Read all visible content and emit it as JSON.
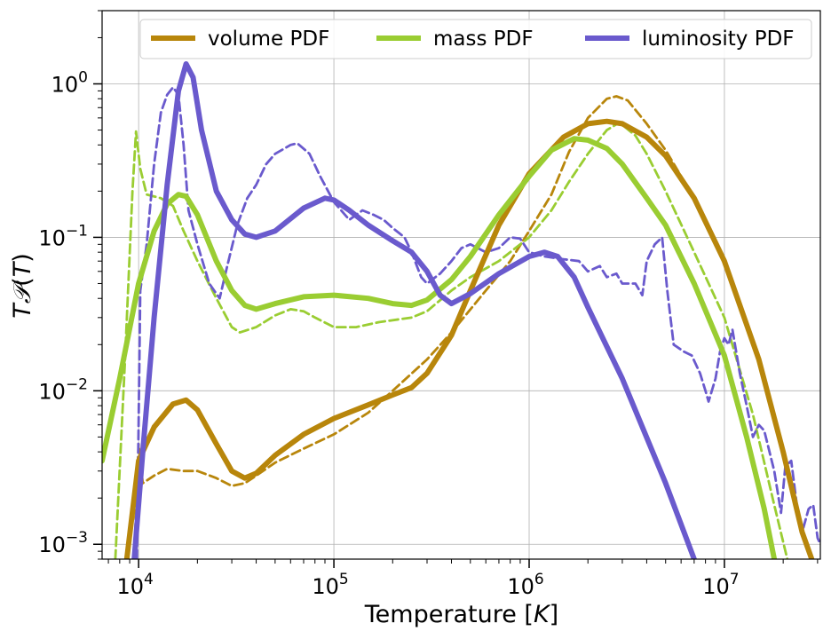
{
  "chart_data": {
    "type": "line",
    "title": "",
    "xlabel": "Temperature [K]",
    "ylabel": "T𝒫(T)",
    "x_scale": "log",
    "y_scale": "log",
    "xlim": [
      6500,
      31000000
    ],
    "ylim": [
      0.0008,
      3.0
    ],
    "x_ticks": [
      {
        "value": 10000,
        "base": "10",
        "exp": "4"
      },
      {
        "value": 100000,
        "base": "10",
        "exp": "5"
      },
      {
        "value": 1000000,
        "base": "10",
        "exp": "6"
      },
      {
        "value": 10000000,
        "base": "10",
        "exp": "7"
      }
    ],
    "y_ticks": [
      {
        "value": 0.001,
        "base": "10",
        "exp": "−3"
      },
      {
        "value": 0.01,
        "base": "10",
        "exp": "−2"
      },
      {
        "value": 0.1,
        "base": "10",
        "exp": "−1"
      },
      {
        "value": 1,
        "base": "10",
        "exp": "0"
      }
    ],
    "grid": true,
    "legend": {
      "placement": "top",
      "columns": 3
    },
    "series": [
      {
        "name": "volume PDF",
        "color": "#b8860b",
        "style": "solid",
        "legend": true,
        "points": [
          [
            8700,
            0.0008
          ],
          [
            10000,
            0.0035
          ],
          [
            12000,
            0.0058
          ],
          [
            15000,
            0.0082
          ],
          [
            17500,
            0.0087
          ],
          [
            20000,
            0.0075
          ],
          [
            25000,
            0.0045
          ],
          [
            30000,
            0.003
          ],
          [
            35000,
            0.0027
          ],
          [
            40000,
            0.0029
          ],
          [
            50000,
            0.0038
          ],
          [
            70000,
            0.0052
          ],
          [
            100000,
            0.0066
          ],
          [
            150000,
            0.0081
          ],
          [
            200000,
            0.0094
          ],
          [
            250000,
            0.0105
          ],
          [
            300000,
            0.013
          ],
          [
            400000,
            0.023
          ],
          [
            500000,
            0.045
          ],
          [
            700000,
            0.12
          ],
          [
            1000000,
            0.26
          ],
          [
            1500000,
            0.45
          ],
          [
            2000000,
            0.55
          ],
          [
            2500000,
            0.57
          ],
          [
            3000000,
            0.55
          ],
          [
            4000000,
            0.45
          ],
          [
            5000000,
            0.34
          ],
          [
            7000000,
            0.18
          ],
          [
            10000000,
            0.07
          ],
          [
            15000000,
            0.016
          ],
          [
            20000000,
            0.004
          ],
          [
            25000000,
            0.0012
          ],
          [
            28000000,
            0.0008
          ]
        ]
      },
      {
        "name": "volume PDF (dashed)",
        "color": "#b8860b",
        "style": "dashed",
        "legend": false,
        "points": [
          [
            9500,
            0.0008
          ],
          [
            10000,
            0.0045
          ],
          [
            10500,
            0.0025
          ],
          [
            12000,
            0.0028
          ],
          [
            14000,
            0.0031
          ],
          [
            17000,
            0.003
          ],
          [
            20000,
            0.003
          ],
          [
            25000,
            0.0027
          ],
          [
            30000,
            0.0024
          ],
          [
            35000,
            0.0025
          ],
          [
            40000,
            0.0028
          ],
          [
            50000,
            0.0034
          ],
          [
            70000,
            0.0042
          ],
          [
            100000,
            0.0052
          ],
          [
            150000,
            0.0072
          ],
          [
            200000,
            0.01
          ],
          [
            300000,
            0.016
          ],
          [
            400000,
            0.024
          ],
          [
            600000,
            0.045
          ],
          [
            800000,
            0.07
          ],
          [
            1000000,
            0.11
          ],
          [
            1300000,
            0.19
          ],
          [
            1600000,
            0.36
          ],
          [
            2000000,
            0.6
          ],
          [
            2500000,
            0.8
          ],
          [
            2800000,
            0.83
          ],
          [
            3200000,
            0.78
          ],
          [
            4000000,
            0.55
          ],
          [
            5000000,
            0.37
          ],
          [
            7000000,
            0.18
          ],
          [
            10000000,
            0.07
          ],
          [
            15000000,
            0.017
          ],
          [
            20000000,
            0.004
          ],
          [
            25000000,
            0.0012
          ],
          [
            28000000,
            0.0008
          ]
        ]
      },
      {
        "name": "mass PDF",
        "color": "#9acd32",
        "style": "solid",
        "legend": true,
        "points": [
          [
            6500,
            0.0035
          ],
          [
            8000,
            0.012
          ],
          [
            10000,
            0.05
          ],
          [
            12000,
            0.11
          ],
          [
            14000,
            0.165
          ],
          [
            16000,
            0.19
          ],
          [
            17500,
            0.185
          ],
          [
            20000,
            0.14
          ],
          [
            25000,
            0.07
          ],
          [
            30000,
            0.045
          ],
          [
            35000,
            0.036
          ],
          [
            40000,
            0.034
          ],
          [
            50000,
            0.037
          ],
          [
            70000,
            0.041
          ],
          [
            100000,
            0.042
          ],
          [
            150000,
            0.04
          ],
          [
            200000,
            0.037
          ],
          [
            250000,
            0.036
          ],
          [
            300000,
            0.039
          ],
          [
            400000,
            0.053
          ],
          [
            500000,
            0.075
          ],
          [
            700000,
            0.14
          ],
          [
            1000000,
            0.25
          ],
          [
            1300000,
            0.37
          ],
          [
            1700000,
            0.44
          ],
          [
            2000000,
            0.43
          ],
          [
            2500000,
            0.38
          ],
          [
            3000000,
            0.3
          ],
          [
            4000000,
            0.18
          ],
          [
            5000000,
            0.12
          ],
          [
            7000000,
            0.05
          ],
          [
            10000000,
            0.017
          ],
          [
            13000000,
            0.005
          ],
          [
            16000000,
            0.0017
          ],
          [
            18000000,
            0.0008
          ]
        ]
      },
      {
        "name": "mass PDF (dashed)",
        "color": "#9acd32",
        "style": "dashed",
        "legend": false,
        "points": [
          [
            7600,
            0.0008
          ],
          [
            8500,
            0.015
          ],
          [
            9300,
            0.2
          ],
          [
            9700,
            0.49
          ],
          [
            10200,
            0.28
          ],
          [
            11000,
            0.19
          ],
          [
            13000,
            0.18
          ],
          [
            15000,
            0.16
          ],
          [
            17000,
            0.11
          ],
          [
            20000,
            0.07
          ],
          [
            25000,
            0.04
          ],
          [
            30000,
            0.026
          ],
          [
            33000,
            0.024
          ],
          [
            40000,
            0.026
          ],
          [
            50000,
            0.031
          ],
          [
            60000,
            0.034
          ],
          [
            70000,
            0.033
          ],
          [
            80000,
            0.03
          ],
          [
            100000,
            0.026
          ],
          [
            130000,
            0.026
          ],
          [
            170000,
            0.028
          ],
          [
            250000,
            0.03
          ],
          [
            300000,
            0.033
          ],
          [
            400000,
            0.045
          ],
          [
            500000,
            0.055
          ],
          [
            700000,
            0.07
          ],
          [
            1000000,
            0.1
          ],
          [
            1300000,
            0.15
          ],
          [
            1600000,
            0.23
          ],
          [
            2000000,
            0.35
          ],
          [
            2500000,
            0.5
          ],
          [
            2900000,
            0.56
          ],
          [
            3500000,
            0.46
          ],
          [
            4000000,
            0.35
          ],
          [
            5000000,
            0.2
          ],
          [
            7000000,
            0.08
          ],
          [
            10000000,
            0.03
          ],
          [
            14000000,
            0.007
          ],
          [
            18000000,
            0.0018
          ],
          [
            21000000,
            0.0008
          ]
        ]
      },
      {
        "name": "luminosity PDF",
        "color": "#6a5acd",
        "style": "solid",
        "legend": true,
        "points": [
          [
            9500,
            0.0008
          ],
          [
            10500,
            0.004
          ],
          [
            12000,
            0.03
          ],
          [
            14000,
            0.22
          ],
          [
            16000,
            0.9
          ],
          [
            17500,
            1.35
          ],
          [
            19000,
            1.1
          ],
          [
            21000,
            0.5
          ],
          [
            25000,
            0.2
          ],
          [
            30000,
            0.13
          ],
          [
            35000,
            0.105
          ],
          [
            40000,
            0.1
          ],
          [
            50000,
            0.11
          ],
          [
            70000,
            0.155
          ],
          [
            90000,
            0.18
          ],
          [
            100000,
            0.175
          ],
          [
            120000,
            0.15
          ],
          [
            150000,
            0.12
          ],
          [
            200000,
            0.095
          ],
          [
            250000,
            0.08
          ],
          [
            300000,
            0.06
          ],
          [
            350000,
            0.042
          ],
          [
            400000,
            0.037
          ],
          [
            500000,
            0.043
          ],
          [
            700000,
            0.058
          ],
          [
            1000000,
            0.075
          ],
          [
            1200000,
            0.08
          ],
          [
            1400000,
            0.075
          ],
          [
            1700000,
            0.055
          ],
          [
            2000000,
            0.035
          ],
          [
            3000000,
            0.012
          ],
          [
            5000000,
            0.0025
          ],
          [
            7000000,
            0.0008
          ]
        ]
      },
      {
        "name": "luminosity PDF (dashed)",
        "color": "#6a5acd",
        "style": "dashed",
        "legend": false,
        "points": [
          [
            9800,
            0.0008
          ],
          [
            10200,
            0.045
          ],
          [
            11000,
            0.09
          ],
          [
            12000,
            0.3
          ],
          [
            13000,
            0.65
          ],
          [
            14000,
            0.85
          ],
          [
            15000,
            0.95
          ],
          [
            16000,
            0.85
          ],
          [
            17000,
            0.4
          ],
          [
            18000,
            0.15
          ],
          [
            20000,
            0.09
          ],
          [
            23000,
            0.05
          ],
          [
            26000,
            0.04
          ],
          [
            28000,
            0.06
          ],
          [
            32000,
            0.12
          ],
          [
            36000,
            0.18
          ],
          [
            40000,
            0.22
          ],
          [
            45000,
            0.3
          ],
          [
            50000,
            0.35
          ],
          [
            60000,
            0.4
          ],
          [
            65000,
            0.41
          ],
          [
            75000,
            0.35
          ],
          [
            85000,
            0.25
          ],
          [
            100000,
            0.17
          ],
          [
            120000,
            0.13
          ],
          [
            140000,
            0.15
          ],
          [
            160000,
            0.14
          ],
          [
            180000,
            0.13
          ],
          [
            200000,
            0.115
          ],
          [
            230000,
            0.1
          ],
          [
            250000,
            0.08
          ],
          [
            280000,
            0.055
          ],
          [
            300000,
            0.05
          ],
          [
            350000,
            0.058
          ],
          [
            400000,
            0.07
          ],
          [
            450000,
            0.085
          ],
          [
            500000,
            0.09
          ],
          [
            600000,
            0.08
          ],
          [
            700000,
            0.085
          ],
          [
            800000,
            0.1
          ],
          [
            900000,
            0.098
          ],
          [
            1000000,
            0.08
          ],
          [
            1200000,
            0.075
          ],
          [
            1500000,
            0.072
          ],
          [
            1800000,
            0.07
          ],
          [
            2000000,
            0.06
          ],
          [
            2300000,
            0.065
          ],
          [
            2500000,
            0.055
          ],
          [
            2800000,
            0.058
          ],
          [
            3000000,
            0.05
          ],
          [
            3500000,
            0.05
          ],
          [
            3800000,
            0.042
          ],
          [
            4000000,
            0.07
          ],
          [
            4400000,
            0.09
          ],
          [
            4800000,
            0.1
          ],
          [
            5100000,
            0.045
          ],
          [
            5500000,
            0.02
          ],
          [
            6200000,
            0.018
          ],
          [
            6800000,
            0.017
          ],
          [
            7500000,
            0.013
          ],
          [
            8000000,
            0.01
          ],
          [
            8300000,
            0.0085
          ],
          [
            9000000,
            0.012
          ],
          [
            9500000,
            0.018
          ],
          [
            10000000,
            0.022
          ],
          [
            10500000,
            0.02
          ],
          [
            11000000,
            0.025
          ],
          [
            12000000,
            0.013
          ],
          [
            13000000,
            0.008
          ],
          [
            14000000,
            0.005
          ],
          [
            15000000,
            0.006
          ],
          [
            16000000,
            0.0055
          ],
          [
            18000000,
            0.003
          ],
          [
            19500000,
            0.0016
          ],
          [
            20500000,
            0.0032
          ],
          [
            22000000,
            0.0035
          ],
          [
            23500000,
            0.0018
          ],
          [
            25000000,
            0.0012
          ],
          [
            27000000,
            0.0017
          ],
          [
            28500000,
            0.0018
          ],
          [
            30000000,
            0.0011
          ],
          [
            31000000,
            0.001
          ]
        ]
      }
    ]
  }
}
